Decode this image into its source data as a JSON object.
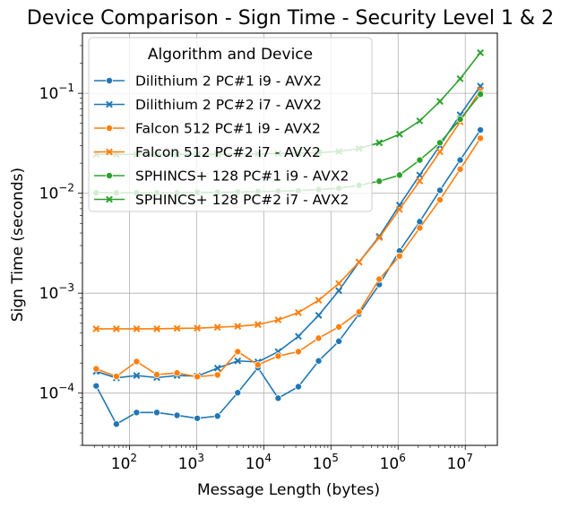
{
  "chart_data": {
    "type": "line",
    "title": "Device Comparison - Sign Time - Security Level 1 & 2",
    "xlabel": "Message Length (bytes)",
    "ylabel": "Sign Time (seconds)",
    "x_scale": "log",
    "y_scale": "log",
    "xlim": [
      20,
      30000000
    ],
    "ylim": [
      3e-05,
      0.4
    ],
    "grid": true,
    "x_ticks": [
      {
        "value": 100,
        "base": "10",
        "exp": "2"
      },
      {
        "value": 1000,
        "base": "10",
        "exp": "3"
      },
      {
        "value": 10000,
        "base": "10",
        "exp": "4"
      },
      {
        "value": 100000,
        "base": "10",
        "exp": "5"
      },
      {
        "value": 1000000,
        "base": "10",
        "exp": "6"
      },
      {
        "value": 10000000,
        "base": "10",
        "exp": "7"
      }
    ],
    "y_ticks": [
      {
        "value": 0.0001,
        "base": "10",
        "exp": "−4"
      },
      {
        "value": 0.001,
        "base": "10",
        "exp": "−3"
      },
      {
        "value": 0.01,
        "base": "10",
        "exp": "−2"
      },
      {
        "value": 0.1,
        "base": "10",
        "exp": "−1"
      }
    ],
    "legend": {
      "title": "Algorithm and Device",
      "position": "top-left"
    },
    "x": [
      32,
      64,
      128,
      256,
      512,
      1024,
      2048,
      4096,
      8192,
      16384,
      32768,
      65536,
      131072,
      262144,
      524288,
      1048576,
      2097152,
      4194304,
      8388608,
      16777216
    ],
    "series": [
      {
        "name": "Dilithium 2 PC#1 i9 - AVX2",
        "color": "#1f77b4",
        "marker": "circle",
        "values": [
          0.000118,
          4.9e-05,
          6.4e-05,
          6.4e-05,
          6e-05,
          5.6e-05,
          5.9e-05,
          0.000101,
          0.00018,
          8.9e-05,
          0.000116,
          0.00021,
          0.00033,
          0.00062,
          0.00122,
          0.00265,
          0.0052,
          0.0107,
          0.0215,
          0.043
        ]
      },
      {
        "name": "Dilithium 2 PC#2 i7 - AVX2",
        "color": "#1f77b4",
        "marker": "x",
        "values": [
          0.000165,
          0.000142,
          0.00015,
          0.000143,
          0.00015,
          0.000148,
          0.000178,
          0.00021,
          0.000205,
          0.00026,
          0.00037,
          0.0006,
          0.00106,
          0.00205,
          0.0037,
          0.0076,
          0.0152,
          0.03,
          0.061,
          0.118
        ]
      },
      {
        "name": "Falcon 512 PC#1 i9 - AVX2",
        "color": "#ff7f0e",
        "marker": "circle",
        "values": [
          0.000175,
          0.000147,
          0.000207,
          0.000153,
          0.000159,
          0.000146,
          0.000152,
          0.00026,
          0.000192,
          0.000235,
          0.00026,
          0.000355,
          0.00046,
          0.00065,
          0.00138,
          0.00235,
          0.0045,
          0.0086,
          0.0174,
          0.0355
        ]
      },
      {
        "name": "Falcon 512 PC#2 i7 - AVX2",
        "color": "#ff7f0e",
        "marker": "x",
        "values": [
          0.00044,
          0.00044,
          0.00044,
          0.00044,
          0.000445,
          0.000447,
          0.000456,
          0.000466,
          0.000485,
          0.00054,
          0.00064,
          0.00085,
          0.00125,
          0.00205,
          0.0036,
          0.0069,
          0.0133,
          0.026,
          0.052,
          0.108
        ]
      },
      {
        "name": "SPHINCS+ 128 PC#1 i9 - AVX2",
        "color": "#2ca02c",
        "marker": "circle",
        "values": [
          0.0101,
          0.0101,
          0.0101,
          0.0101,
          0.0101,
          0.0102,
          0.0102,
          0.0103,
          0.0104,
          0.0105,
          0.0106,
          0.0109,
          0.0112,
          0.012,
          0.0132,
          0.0152,
          0.0215,
          0.032,
          0.055,
          0.098
        ]
      },
      {
        "name": "SPHINCS+ 128 PC#2 i7 - AVX2",
        "color": "#2ca02c",
        "marker": "x",
        "values": [
          0.0245,
          0.0245,
          0.0245,
          0.0245,
          0.0245,
          0.0246,
          0.0246,
          0.0247,
          0.0248,
          0.025,
          0.0252,
          0.0255,
          0.0262,
          0.028,
          0.032,
          0.039,
          0.053,
          0.083,
          0.14,
          0.255
        ]
      }
    ]
  }
}
